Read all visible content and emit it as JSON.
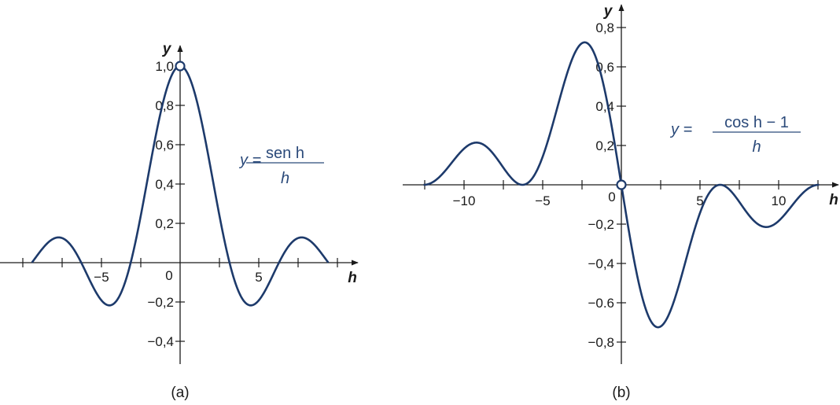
{
  "colors": {
    "curve": "#1d3a6b",
    "axis": "#1a1a1a",
    "equation": "#2b4a7a"
  },
  "chart_data": [
    {
      "type": "line",
      "caption": "(a)",
      "xlabel": "h",
      "ylabel": "y",
      "function": "sin(h)/h",
      "equation": {
        "lhs": "y =",
        "numerator": "sen h",
        "denominator": "h"
      },
      "domain": [
        -9.42,
        9.42
      ],
      "xlim": [
        -11.4,
        11.3
      ],
      "ylim": [
        -0.52,
        1.1
      ],
      "grid": false,
      "open_point": {
        "x": 0,
        "y": 1.0
      },
      "x_ticks": [
        -10,
        -7.5,
        -5,
        -2.5,
        2.5,
        5,
        7.5,
        10
      ],
      "x_tick_labels": [
        {
          "value": -5,
          "label": "−5"
        },
        {
          "value": 5,
          "label": "5"
        }
      ],
      "origin_label": "0",
      "y_tick_labels": [
        {
          "value": 1.0,
          "label": "1,0"
        },
        {
          "value": 0.8,
          "label": "0,8"
        },
        {
          "value": 0.6,
          "label": "0,6"
        },
        {
          "value": 0.4,
          "label": "0,4"
        },
        {
          "value": 0.2,
          "label": "0,2"
        },
        {
          "value": -0.2,
          "label": "−0,2"
        },
        {
          "value": -0.4,
          "label": "−0,4"
        }
      ],
      "key_points": [
        {
          "x": -9.42,
          "y": 0
        },
        {
          "x": -7.73,
          "y": 0.128
        },
        {
          "x": -6.28,
          "y": 0
        },
        {
          "x": -4.49,
          "y": -0.217
        },
        {
          "x": -3.14,
          "y": 0
        },
        {
          "x": 0,
          "y": 1.0
        },
        {
          "x": 3.14,
          "y": 0
        },
        {
          "x": 4.49,
          "y": -0.217
        },
        {
          "x": 6.28,
          "y": 0
        },
        {
          "x": 7.73,
          "y": 0.128
        },
        {
          "x": 9.42,
          "y": 0
        }
      ]
    },
    {
      "type": "line",
      "caption": "(b)",
      "xlabel": "h",
      "ylabel": "y",
      "function": "(cos(h)-1)/h",
      "equation": {
        "lhs": "y =",
        "numerator": "cos h − 1",
        "denominator": "h"
      },
      "domain": [
        -12.57,
        12.57
      ],
      "xlim": [
        -13.9,
        13.9
      ],
      "ylim": [
        -0.91,
        0.94
      ],
      "grid": false,
      "open_point": {
        "x": 0,
        "y": 0
      },
      "x_ticks": [
        -12.5,
        -10,
        -7.5,
        -5,
        -2.5,
        2.5,
        5,
        7.5,
        10,
        12.5
      ],
      "x_tick_labels": [
        {
          "value": -10,
          "label": "−10"
        },
        {
          "value": -5,
          "label": "−5"
        },
        {
          "value": 5,
          "label": "5"
        },
        {
          "value": 10,
          "label": "10"
        }
      ],
      "origin_label": "0",
      "y_tick_labels": [
        {
          "value": 0.8,
          "label": "0,8"
        },
        {
          "value": 0.6,
          "label": "0,6"
        },
        {
          "value": 0.4,
          "label": "0,4"
        },
        {
          "value": 0.2,
          "label": "0,2"
        },
        {
          "value": -0.2,
          "label": "−0,2"
        },
        {
          "value": -0.4,
          "label": "−0,4"
        },
        {
          "value": -0.6,
          "label": "−0.6"
        },
        {
          "value": -0.8,
          "label": "−0,8"
        }
      ],
      "key_points": [
        {
          "x": -12.57,
          "y": 0
        },
        {
          "x": -9.0,
          "y": 0.217
        },
        {
          "x": -6.28,
          "y": 0
        },
        {
          "x": -2.33,
          "y": 0.725
        },
        {
          "x": 0,
          "y": 0
        },
        {
          "x": 2.33,
          "y": -0.725
        },
        {
          "x": 6.28,
          "y": 0
        },
        {
          "x": 9.0,
          "y": -0.217
        },
        {
          "x": 12.57,
          "y": 0
        }
      ]
    }
  ]
}
